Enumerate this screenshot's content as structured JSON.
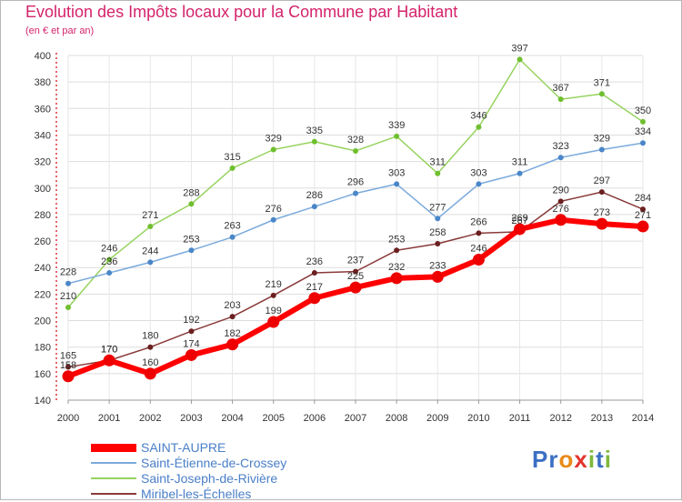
{
  "title": "Evolution des Impôts locaux pour la Commune par Habitant",
  "subtitle": "(en € et par an)",
  "brand": {
    "name": "Proxiti",
    "letters": [
      "P",
      "r",
      "o",
      "x",
      "i",
      "t",
      "i"
    ],
    "colors": [
      "#3b6fc4",
      "#3b6fc4",
      "#e88a1a",
      "#e3342f",
      "#7fb83a",
      "#3b6fc4",
      "#7fb83a"
    ]
  },
  "chart_data": {
    "type": "line",
    "title": "Evolution des Impôts locaux pour la Commune par Habitant",
    "ylabel": "(en € et par an)",
    "xlabel": "",
    "ylim": [
      140,
      400
    ],
    "yticks": [
      140,
      160,
      180,
      200,
      220,
      240,
      260,
      280,
      300,
      320,
      340,
      360,
      380,
      400
    ],
    "categories": [
      "2000",
      "2001",
      "2002",
      "2003",
      "2004",
      "2005",
      "2006",
      "2007",
      "2008",
      "2009",
      "2010",
      "2011",
      "2012",
      "2013",
      "2014"
    ],
    "grid": true,
    "legend_position": "bottom-left",
    "series": [
      {
        "name": "Saint-Joseph-de-Rivière",
        "color": "#97d35f",
        "marker": "#6fbf2f",
        "width": 1.5,
        "radius": 3,
        "values": [
          210,
          246,
          271,
          288,
          315,
          329,
          335,
          328,
          339,
          311,
          346,
          397,
          367,
          371,
          350
        ]
      },
      {
        "name": "Saint-Étienne-de-Crossey",
        "color": "#7aaadc",
        "marker": "#4a86c8",
        "width": 1.5,
        "radius": 3,
        "values": [
          228,
          236,
          244,
          253,
          263,
          276,
          286,
          296,
          303,
          277,
          303,
          311,
          323,
          329,
          334
        ]
      },
      {
        "name": "Miribel-les-Échelles",
        "color": "#8a3a3a",
        "marker": "#6b1f1f",
        "width": 1.5,
        "radius": 3,
        "values": [
          165,
          170,
          180,
          192,
          203,
          219,
          236,
          237,
          253,
          258,
          266,
          267,
          290,
          297,
          284
        ]
      },
      {
        "name": "SAINT-AUPRE",
        "color": "#ff0000",
        "marker": "#ee0000",
        "width": 6,
        "radius": 6,
        "values": [
          158,
          170,
          160,
          174,
          182,
          199,
          217,
          225,
          232,
          233,
          246,
          269,
          276,
          273,
          271
        ]
      }
    ],
    "legend_order": [
      "SAINT-AUPRE",
      "Saint-Étienne-de-Crossey",
      "Saint-Joseph-de-Rivière",
      "Miribel-les-Échelles"
    ]
  }
}
